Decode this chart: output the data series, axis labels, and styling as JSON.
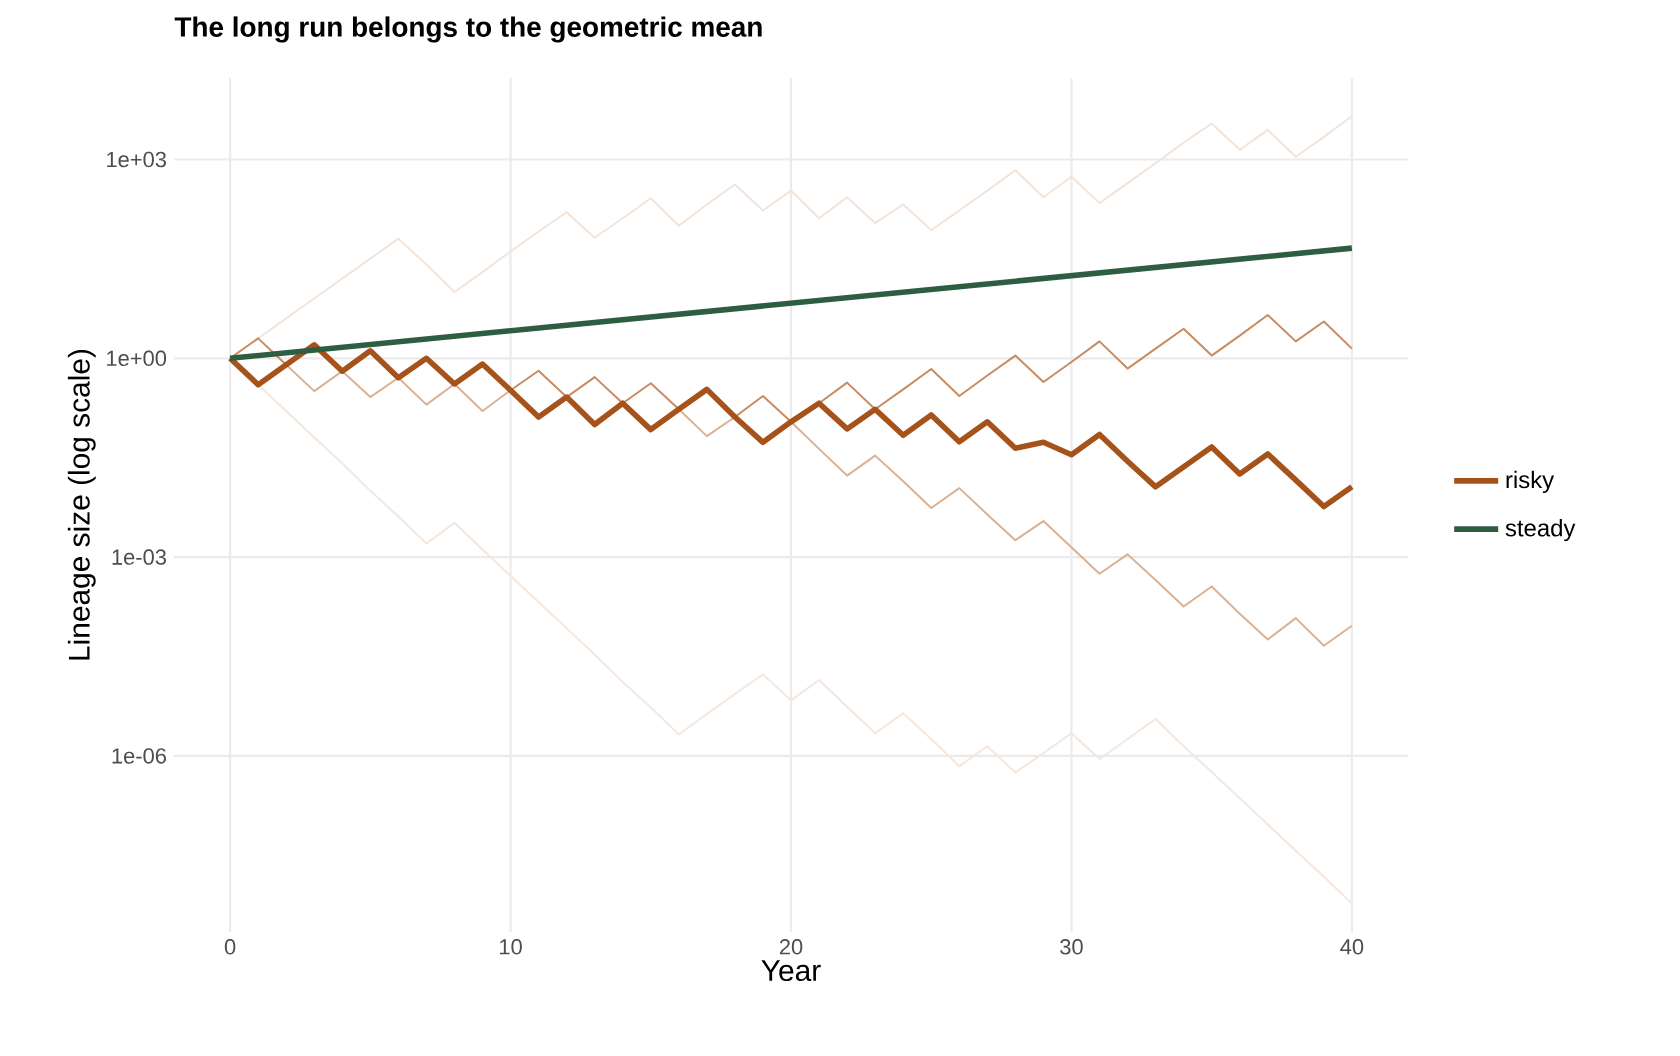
{
  "chart_data": {
    "type": "line",
    "title": "The long run belongs to the geometric mean",
    "xlabel": "Year",
    "ylabel": "Lineage size (log scale)",
    "x": [
      0,
      1,
      2,
      3,
      4,
      5,
      6,
      7,
      8,
      9,
      10,
      11,
      12,
      13,
      14,
      15,
      16,
      17,
      18,
      19,
      20,
      21,
      22,
      23,
      24,
      25,
      26,
      27,
      28,
      29,
      30,
      31,
      32,
      33,
      34,
      35,
      36,
      37,
      38,
      39,
      40
    ],
    "series": [
      {
        "color": "#f3e4d9",
        "values": [
          1,
          2,
          4,
          8,
          16,
          32,
          64,
          26,
          10,
          20,
          41,
          82,
          160,
          66,
          130,
          260,
          100,
          210,
          420,
          170,
          340,
          130,
          270,
          110,
          210,
          86,
          170,
          340,
          690,
          270,
          550,
          220,
          440,
          880,
          1800,
          3500,
          1400,
          2800,
          1100,
          2200,
          4500
        ]
      },
      {
        "color": "#f4e7de",
        "values": [
          1,
          0.4,
          0.16,
          0.064,
          0.026,
          0.01,
          0.0041,
          0.0016,
          0.0033,
          0.0013,
          0.00052,
          0.00021,
          8.4e-05,
          3.4e-05,
          1.3e-05,
          5.4e-06,
          2.1e-06,
          4.3e-06,
          8.6e-06,
          1.7e-05,
          6.9e-06,
          1.4e-05,
          5.5e-06,
          2.2e-06,
          4.4e-06,
          1.8e-06,
          7e-07,
          1.4e-06,
          5.6e-07,
          1.1e-06,
          2.2e-06,
          9e-07,
          1.8e-06,
          3.6e-06,
          1.4e-06,
          5.7e-07,
          2.3e-07,
          9.2e-08,
          3.7e-08,
          1.5e-08,
          5.9e-09
        ]
      },
      {
        "color": "#c98b60",
        "values": [
          1,
          2,
          0.8,
          1.6,
          0.64,
          1.3,
          0.51,
          1.0,
          0.41,
          0.82,
          0.33,
          0.65,
          0.26,
          0.52,
          0.21,
          0.42,
          0.17,
          0.34,
          0.13,
          0.27,
          0.11,
          0.21,
          0.43,
          0.17,
          0.34,
          0.69,
          0.27,
          0.55,
          1.1,
          0.44,
          0.88,
          1.8,
          0.7,
          1.4,
          2.8,
          1.1,
          2.2,
          4.5,
          1.8,
          3.6,
          1.4
        ]
      },
      {
        "color": "#dbb193",
        "values": [
          1,
          0.4,
          0.8,
          0.32,
          0.64,
          0.26,
          0.51,
          0.2,
          0.41,
          0.16,
          0.33,
          0.13,
          0.26,
          0.1,
          0.21,
          0.084,
          0.17,
          0.067,
          0.13,
          0.054,
          0.11,
          0.043,
          0.017,
          0.034,
          0.014,
          0.0055,
          0.011,
          0.0044,
          0.0018,
          0.0035,
          0.0014,
          0.00056,
          0.0011,
          0.00045,
          0.00018,
          0.00036,
          0.00014,
          5.7e-05,
          0.00012,
          4.6e-05,
          9.2e-05
        ]
      },
      {
        "name": "risky",
        "color": "#a5521b",
        "values": [
          1,
          0.4,
          0.8,
          1.6,
          0.64,
          1.3,
          0.51,
          1.0,
          0.41,
          0.82,
          0.33,
          0.13,
          0.26,
          0.1,
          0.21,
          0.084,
          0.17,
          0.34,
          0.13,
          0.054,
          0.11,
          0.21,
          0.086,
          0.17,
          0.069,
          0.14,
          0.055,
          0.11,
          0.044,
          0.054,
          0.035,
          0.071,
          0.028,
          0.0115,
          0.023,
          0.046,
          0.018,
          0.036,
          0.0145,
          0.0058,
          0.0115
        ]
      },
      {
        "name": "steady",
        "color": "#2e5e41",
        "x": [
          0,
          40
        ],
        "values": [
          1,
          46
        ]
      }
    ],
    "log": "y",
    "grid": true,
    "legend": "right",
    "xlim": [
      -2,
      42
    ],
    "xticks": [
      0,
      10,
      20,
      30,
      40
    ],
    "ylim": [
      2.2e-09,
      17000
    ],
    "yticks": [
      {
        "value": 1e-06,
        "label": "1e-06"
      },
      {
        "value": 0.001,
        "label": "1e-03"
      },
      {
        "value": 1,
        "label": "1e+00"
      },
      {
        "value": 1000,
        "label": "1e+03"
      }
    ]
  }
}
